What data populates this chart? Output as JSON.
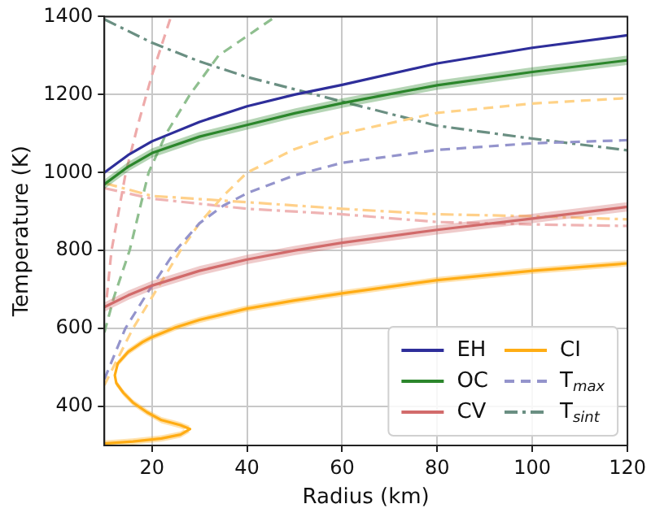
{
  "chart_data": {
    "type": "line",
    "xlabel": "Radius (km)",
    "ylabel": "Temperature (K)",
    "xlim": [
      10,
      120
    ],
    "xticks": [
      20,
      40,
      60,
      80,
      100,
      120
    ],
    "ylim": [
      300,
      1400
    ],
    "yticks": [
      400,
      600,
      800,
      1000,
      1200,
      1400
    ],
    "grid": true,
    "legend": "bottom right",
    "marker": "none",
    "series": [
      {
        "name": "EH",
        "color": "#2e2e9a",
        "line_style": "solid",
        "x": [
          10,
          15,
          20,
          30,
          40,
          50,
          60,
          80,
          100,
          120
        ],
        "values": [
          1000,
          1045,
          1080,
          1130,
          1170,
          1200,
          1225,
          1280,
          1320,
          1352
        ]
      },
      {
        "name": "OC",
        "color": "#2b862b",
        "line_style": "solid",
        "x": [
          10,
          15,
          20,
          30,
          40,
          50,
          60,
          80,
          100,
          120
        ],
        "values": [
          970,
          1015,
          1050,
          1092,
          1122,
          1152,
          1178,
          1224,
          1258,
          1288
        ],
        "lower": [
          958,
          1003,
          1038,
          1080,
          1110,
          1140,
          1166,
          1212,
          1246,
          1276
        ],
        "upper": [
          982,
          1027,
          1062,
          1104,
          1134,
          1164,
          1190,
          1236,
          1270,
          1300
        ]
      },
      {
        "name": "CV",
        "color": "#d26b6b",
        "line_style": "solid",
        "x": [
          10,
          15,
          20,
          30,
          40,
          50,
          60,
          80,
          100,
          120
        ],
        "values": [
          655,
          685,
          710,
          748,
          777,
          800,
          820,
          853,
          882,
          912
        ],
        "lower": [
          643,
          673,
          698,
          736,
          765,
          788,
          808,
          841,
          870,
          900
        ],
        "upper": [
          667,
          697,
          722,
          760,
          789,
          812,
          832,
          865,
          894,
          924
        ]
      },
      {
        "name": "CI",
        "color": "#ffad14",
        "line_style": "solid",
        "x": [
          10,
          16,
          22,
          26,
          28,
          26,
          22,
          19,
          16,
          14,
          12.5,
          12.2,
          12.8,
          15,
          18,
          20,
          25,
          30,
          40,
          50,
          60,
          80,
          100,
          120
        ],
        "values": [
          305,
          310,
          318,
          328,
          342,
          352,
          365,
          385,
          410,
          435,
          460,
          480,
          510,
          540,
          565,
          578,
          603,
          622,
          651,
          672,
          690,
          724,
          748,
          767
        ],
        "lower": [
          300,
          302,
          310,
          320,
          334,
          344,
          357,
          377,
          402,
          427,
          452,
          472,
          502,
          532,
          557,
          570,
          595,
          614,
          643,
          664,
          682,
          716,
          740,
          759
        ],
        "upper": [
          313,
          318,
          326,
          336,
          350,
          360,
          373,
          393,
          418,
          443,
          468,
          488,
          518,
          548,
          573,
          586,
          611,
          630,
          659,
          680,
          698,
          732,
          756,
          775
        ]
      },
      {
        "name": "T$_{max}$",
        "color": "#9494cc",
        "line_style": "dashed",
        "x": [
          10,
          14.4,
          19.5,
          25,
          30,
          35,
          40,
          50,
          60,
          80,
          100,
          120
        ],
        "values": [
          470,
          600,
          700,
          800,
          870,
          915,
          947,
          993,
          1025,
          1058,
          1075,
          1083
        ]
      },
      {
        "color": "#eeaaaa",
        "line_style": "dashed",
        "x": [
          10.5,
          11.5,
          13,
          14.5,
          17,
          20,
          24
        ],
        "values": [
          680,
          800,
          900,
          1000,
          1120,
          1250,
          1400
        ]
      },
      {
        "color": "#8fbf8f",
        "line_style": "dashed",
        "x": [
          10,
          12,
          15.3,
          19.3,
          23,
          28,
          34,
          46
        ],
        "values": [
          590,
          680,
          800,
          1000,
          1100,
          1200,
          1300,
          1400
        ]
      },
      {
        "color": "#ffd286",
        "line_style": "dashed",
        "x": [
          10,
          16,
          21,
          26,
          30,
          35,
          40,
          50,
          60,
          80,
          100,
          120
        ],
        "values": [
          455,
          600,
          700,
          800,
          870,
          940,
          1000,
          1060,
          1100,
          1153,
          1177,
          1191
        ]
      },
      {
        "name": "T$_{sint}$",
        "color": "#6a8f82",
        "line_style": "dashdot",
        "x": [
          10,
          20,
          30,
          40,
          60,
          80,
          100,
          120
        ],
        "values": [
          1393,
          1333,
          1285,
          1245,
          1182,
          1120,
          1087,
          1057
        ]
      },
      {
        "color": "#ffd08a",
        "line_style": "dashdot",
        "x": [
          10,
          20,
          40,
          60,
          80,
          100,
          120
        ],
        "values": [
          973,
          940,
          924,
          907,
          893,
          888,
          880
        ]
      },
      {
        "color": "#efb4b4",
        "line_style": "dashdot",
        "x": [
          10,
          20,
          40,
          60,
          80,
          100,
          120
        ],
        "values": [
          960,
          933,
          907,
          893,
          873,
          867,
          863
        ]
      }
    ]
  }
}
